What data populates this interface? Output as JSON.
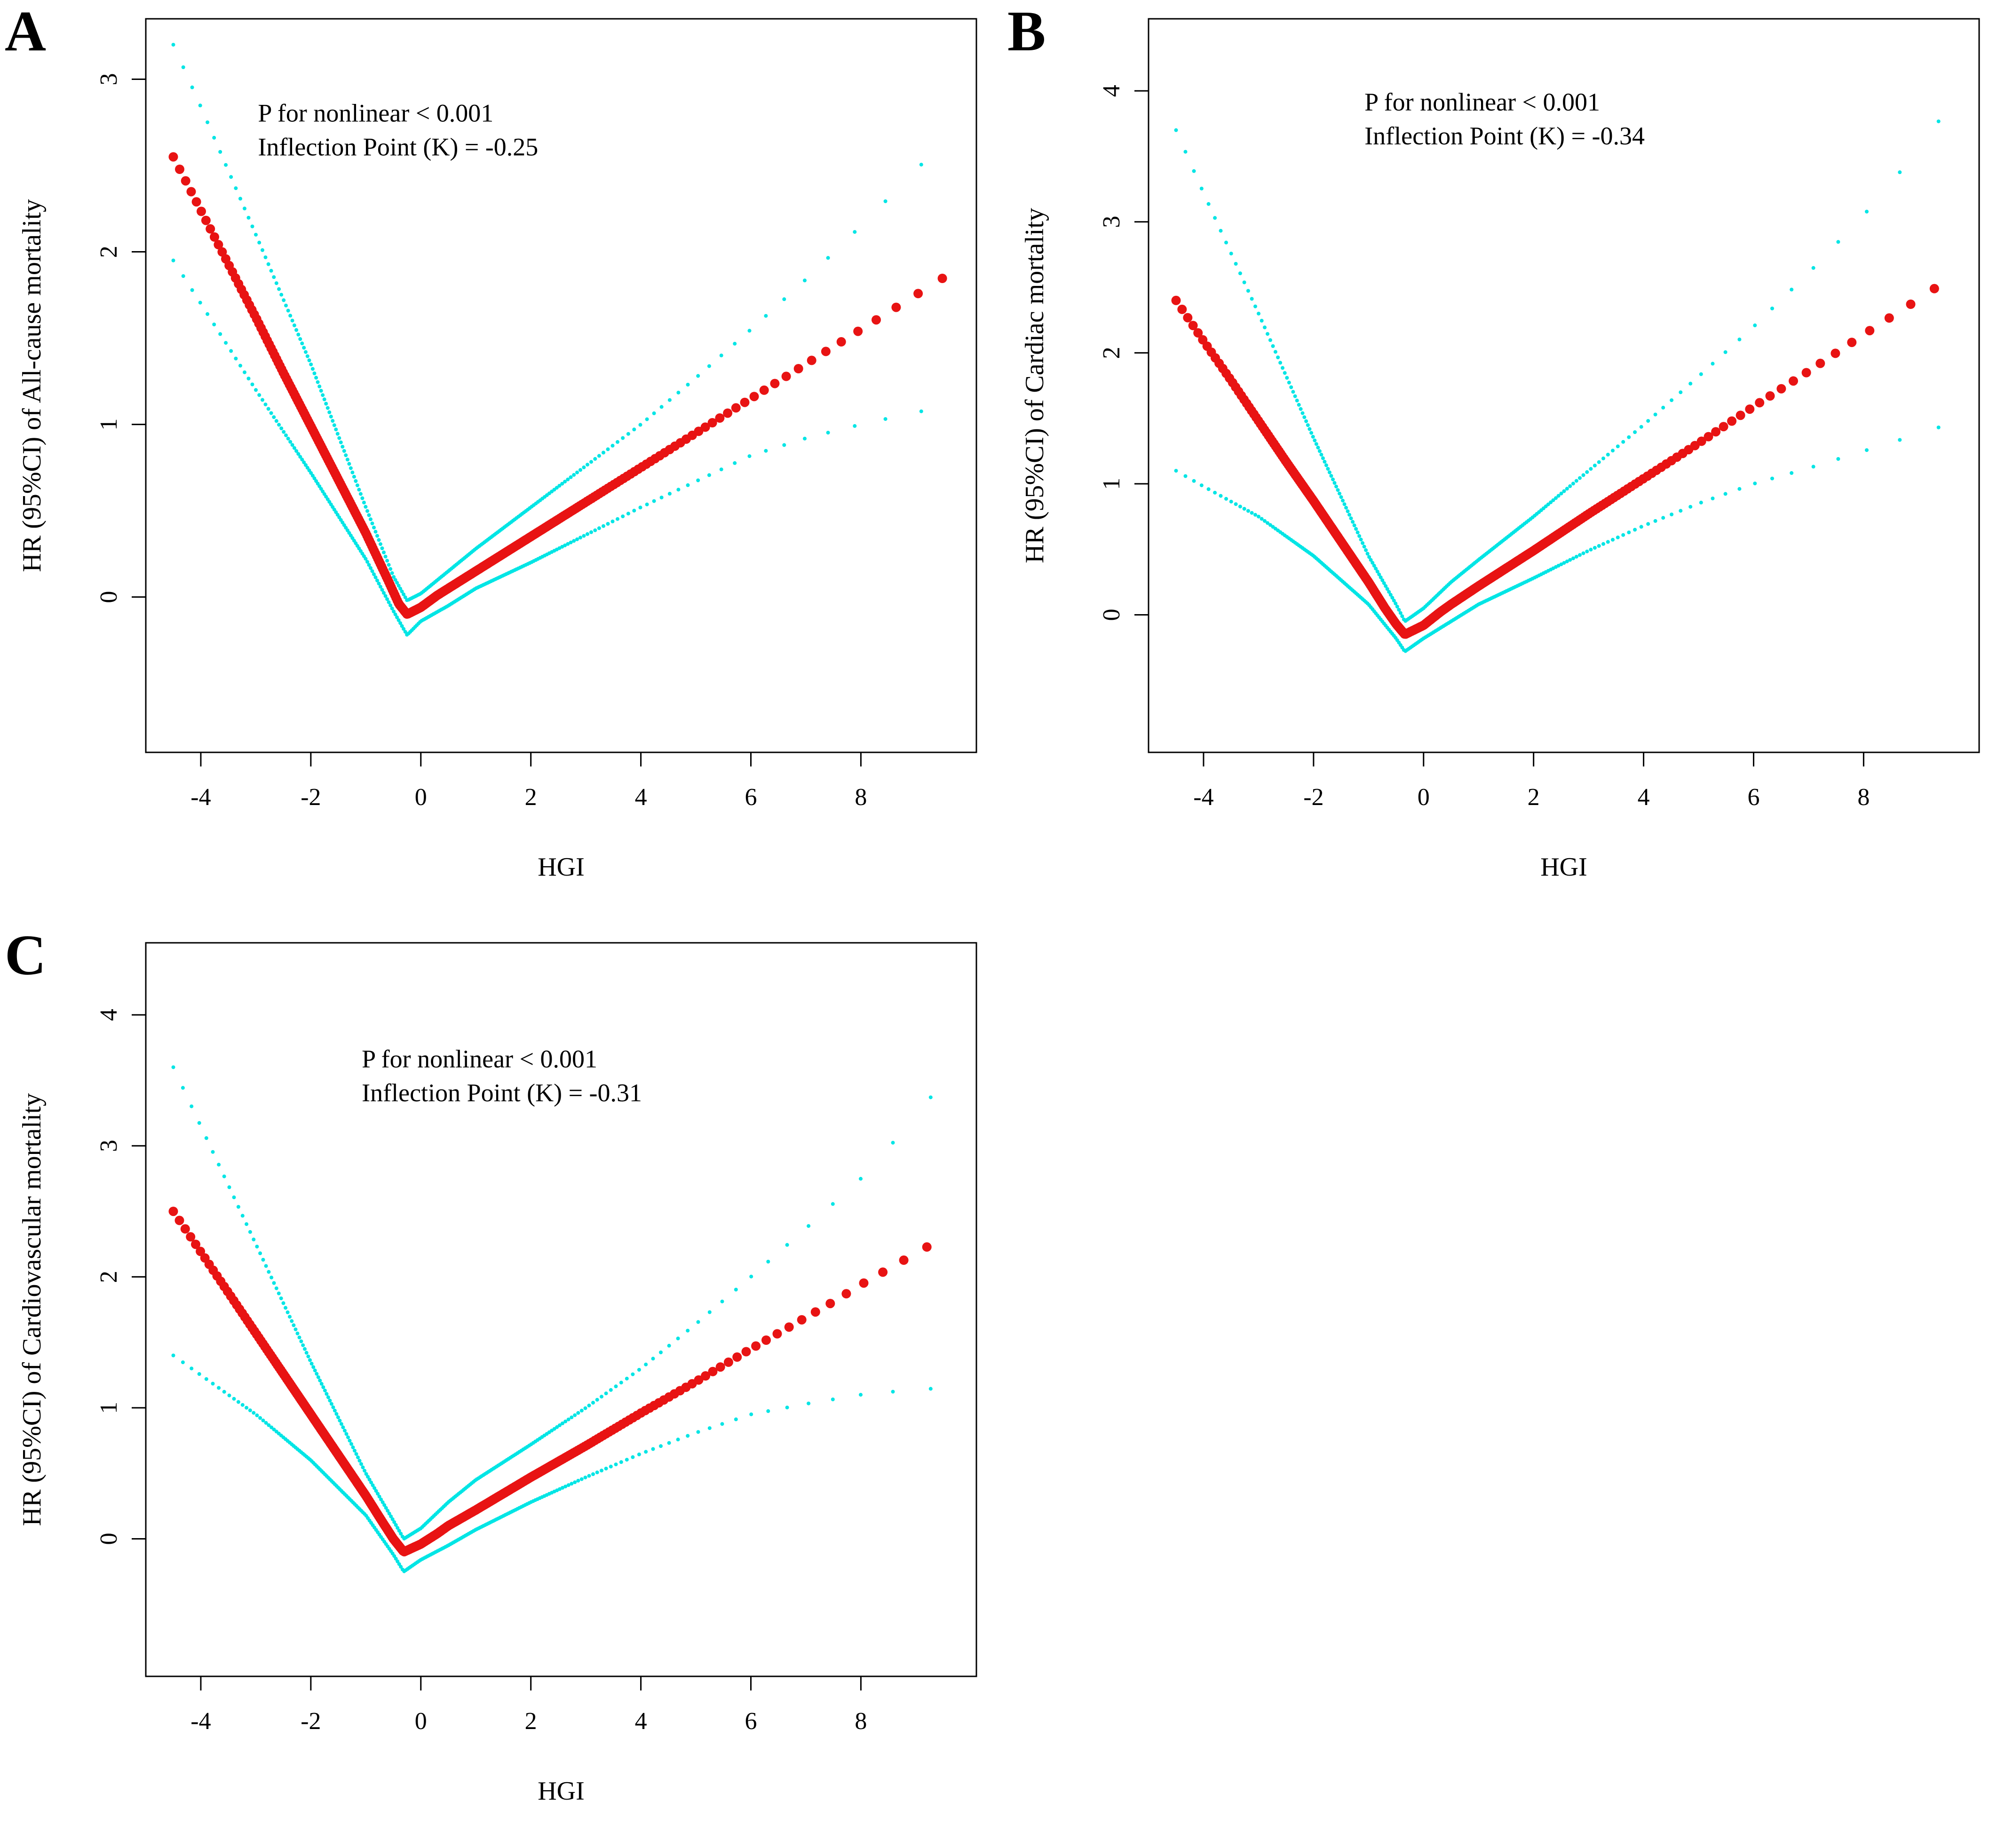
{
  "figure": {
    "panels": [
      {
        "letter": "A"
      },
      {
        "letter": "B"
      },
      {
        "letter": "C"
      }
    ]
  },
  "colors": {
    "estimate": "#e81313",
    "ci": "#00e5e5",
    "axis": "#000000",
    "background": "#ffffff"
  },
  "chart_data": [
    {
      "type": "scatter",
      "panel": "A",
      "title": "",
      "xlabel": "HGI",
      "ylabel": "HR (95%CI) of All-cause mortality",
      "annotation_lines": [
        "P for nonlinear < 0.001",
        "Inflection Point (K) = -0.25"
      ],
      "p_for_nonlinear": "< 0.001",
      "inflection_k": -0.25,
      "xlim": [
        -5.0,
        10.1
      ],
      "ylim": [
        -0.9,
        3.35
      ],
      "xticks": [
        -4,
        -2,
        0,
        2,
        4,
        6,
        8
      ],
      "yticks": [
        0,
        1,
        2,
        3
      ],
      "grid": false,
      "legend": "none",
      "annotation_pos": {
        "x_frac": 0.135,
        "y_frac": 0.14
      },
      "series": [
        {
          "name": "HR estimate",
          "role": "estimate",
          "color": "#e81313",
          "points": [
            [
              -4.5,
              2.55
            ],
            [
              -4.0,
              2.24
            ],
            [
              -3.5,
              1.93
            ],
            [
              -3.0,
              1.62
            ],
            [
              -2.5,
              1.3
            ],
            [
              -2.0,
              0.99
            ],
            [
              -1.5,
              0.68
            ],
            [
              -1.0,
              0.37
            ],
            [
              -0.6,
              0.1
            ],
            [
              -0.4,
              -0.04
            ],
            [
              -0.25,
              -0.1
            ],
            [
              0.0,
              -0.06
            ],
            [
              0.3,
              0.01
            ],
            [
              0.5,
              0.05
            ],
            [
              1.0,
              0.15
            ],
            [
              2.0,
              0.35
            ],
            [
              3.0,
              0.55
            ],
            [
              4.0,
              0.75
            ],
            [
              5.0,
              0.95
            ],
            [
              6.0,
              1.15
            ],
            [
              7.0,
              1.35
            ],
            [
              7.5,
              1.45
            ],
            [
              8.0,
              1.55
            ],
            [
              9.0,
              1.75
            ],
            [
              9.5,
              1.85
            ]
          ]
        },
        {
          "name": "95% CI upper",
          "role": "ci",
          "color": "#00e5e5",
          "points": [
            [
              -4.5,
              3.2
            ],
            [
              -4.0,
              2.84
            ],
            [
              -3.0,
              2.1
            ],
            [
              -2.0,
              1.35
            ],
            [
              -1.0,
              0.52
            ],
            [
              -0.5,
              0.12
            ],
            [
              -0.25,
              -0.02
            ],
            [
              0.0,
              0.02
            ],
            [
              0.5,
              0.15
            ],
            [
              1.0,
              0.28
            ],
            [
              2.0,
              0.52
            ],
            [
              3.0,
              0.76
            ],
            [
              4.0,
              1.0
            ],
            [
              5.0,
              1.27
            ],
            [
              6.0,
              1.55
            ],
            [
              7.0,
              1.84
            ],
            [
              8.0,
              2.15
            ],
            [
              9.0,
              2.47
            ],
            [
              9.5,
              2.65
            ]
          ]
        },
        {
          "name": "95% CI lower",
          "role": "ci",
          "color": "#00e5e5",
          "points": [
            [
              -4.5,
              1.95
            ],
            [
              -4.0,
              1.7
            ],
            [
              -3.0,
              1.2
            ],
            [
              -2.0,
              0.72
            ],
            [
              -1.0,
              0.22
            ],
            [
              -0.5,
              -0.08
            ],
            [
              -0.25,
              -0.22
            ],
            [
              0.0,
              -0.14
            ],
            [
              0.5,
              -0.05
            ],
            [
              1.0,
              0.05
            ],
            [
              2.0,
              0.2
            ],
            [
              3.0,
              0.36
            ],
            [
              4.0,
              0.52
            ],
            [
              5.0,
              0.67
            ],
            [
              6.0,
              0.82
            ],
            [
              7.0,
              0.92
            ],
            [
              8.0,
              1.0
            ],
            [
              9.0,
              1.07
            ],
            [
              9.5,
              1.1
            ]
          ]
        }
      ]
    },
    {
      "type": "scatter",
      "panel": "B",
      "title": "",
      "xlabel": "HGI",
      "ylabel": "HR (95%CI) of Cardiac mortality",
      "annotation_lines": [
        "P for nonlinear < 0.001",
        "Inflection Point (K) = -0.34"
      ],
      "p_for_nonlinear": "< 0.001",
      "inflection_k": -0.34,
      "xlim": [
        -5.0,
        10.1
      ],
      "ylim": [
        -1.05,
        4.55
      ],
      "xticks": [
        -4,
        -2,
        0,
        2,
        4,
        6,
        8
      ],
      "yticks": [
        0,
        1,
        2,
        3,
        4
      ],
      "grid": false,
      "legend": "none",
      "annotation_pos": {
        "x_frac": 0.26,
        "y_frac": 0.125
      },
      "series": [
        {
          "name": "HR estimate",
          "role": "estimate",
          "color": "#e81313",
          "points": [
            [
              -4.5,
              2.4
            ],
            [
              -4.0,
              2.09
            ],
            [
              -3.5,
              1.79
            ],
            [
              -3.0,
              1.48
            ],
            [
              -2.5,
              1.17
            ],
            [
              -2.0,
              0.87
            ],
            [
              -1.5,
              0.56
            ],
            [
              -1.0,
              0.25
            ],
            [
              -0.7,
              0.05
            ],
            [
              -0.5,
              -0.07
            ],
            [
              -0.34,
              -0.15
            ],
            [
              0.0,
              -0.08
            ],
            [
              0.3,
              0.02
            ],
            [
              0.5,
              0.08
            ],
            [
              1.0,
              0.22
            ],
            [
              2.0,
              0.49
            ],
            [
              3.0,
              0.77
            ],
            [
              4.0,
              1.04
            ],
            [
              5.0,
              1.31
            ],
            [
              6.0,
              1.59
            ],
            [
              7.0,
              1.86
            ],
            [
              7.5,
              2.0
            ],
            [
              8.0,
              2.14
            ],
            [
              9.0,
              2.41
            ],
            [
              9.5,
              2.55
            ]
          ]
        },
        {
          "name": "95% CI upper",
          "role": "ci",
          "color": "#00e5e5",
          "points": [
            [
              -4.5,
              3.7
            ],
            [
              -4.0,
              3.22
            ],
            [
              -3.0,
              2.3
            ],
            [
              -2.0,
              1.35
            ],
            [
              -1.0,
              0.45
            ],
            [
              -0.5,
              0.08
            ],
            [
              -0.34,
              -0.05
            ],
            [
              0.0,
              0.05
            ],
            [
              0.5,
              0.25
            ],
            [
              1.0,
              0.42
            ],
            [
              2.0,
              0.75
            ],
            [
              3.0,
              1.1
            ],
            [
              4.0,
              1.45
            ],
            [
              5.0,
              1.82
            ],
            [
              6.0,
              2.2
            ],
            [
              7.0,
              2.61
            ],
            [
              8.0,
              3.05
            ],
            [
              9.0,
              3.55
            ],
            [
              9.5,
              3.85
            ]
          ]
        },
        {
          "name": "95% CI lower",
          "role": "ci",
          "color": "#00e5e5",
          "points": [
            [
              -4.5,
              1.1
            ],
            [
              -4.0,
              0.98
            ],
            [
              -3.0,
              0.75
            ],
            [
              -2.0,
              0.45
            ],
            [
              -1.0,
              0.08
            ],
            [
              -0.5,
              -0.18
            ],
            [
              -0.34,
              -0.28
            ],
            [
              0.0,
              -0.18
            ],
            [
              0.5,
              -0.05
            ],
            [
              1.0,
              0.08
            ],
            [
              2.0,
              0.28
            ],
            [
              3.0,
              0.49
            ],
            [
              4.0,
              0.68
            ],
            [
              5.0,
              0.85
            ],
            [
              6.0,
              1.0
            ],
            [
              7.0,
              1.12
            ],
            [
              8.0,
              1.25
            ],
            [
              9.0,
              1.38
            ],
            [
              9.5,
              1.45
            ]
          ]
        }
      ]
    },
    {
      "type": "scatter",
      "panel": "C",
      "title": "",
      "xlabel": "HGI",
      "ylabel": "HR (95%CI) of Cardiovascular mortality",
      "annotation_lines": [
        "P for nonlinear < 0.001",
        "Inflection Point (K) = -0.31"
      ],
      "p_for_nonlinear": "< 0.001",
      "inflection_k": -0.31,
      "xlim": [
        -5.0,
        10.1
      ],
      "ylim": [
        -1.05,
        4.55
      ],
      "xticks": [
        -4,
        -2,
        0,
        2,
        4,
        6,
        8
      ],
      "yticks": [
        0,
        1,
        2,
        3,
        4
      ],
      "grid": false,
      "legend": "none",
      "annotation_pos": {
        "x_frac": 0.26,
        "y_frac": 0.17
      },
      "series": [
        {
          "name": "HR estimate",
          "role": "estimate",
          "color": "#e81313",
          "points": [
            [
              -4.5,
              2.5
            ],
            [
              -4.0,
              2.19
            ],
            [
              -3.5,
              1.88
            ],
            [
              -3.0,
              1.57
            ],
            [
              -2.5,
              1.26
            ],
            [
              -2.0,
              0.95
            ],
            [
              -1.5,
              0.64
            ],
            [
              -1.0,
              0.33
            ],
            [
              -0.7,
              0.13
            ],
            [
              -0.5,
              0.0
            ],
            [
              -0.31,
              -0.1
            ],
            [
              0.0,
              -0.04
            ],
            [
              0.3,
              0.04
            ],
            [
              0.5,
              0.1
            ],
            [
              1.0,
              0.22
            ],
            [
              2.0,
              0.47
            ],
            [
              3.0,
              0.71
            ],
            [
              4.0,
              0.96
            ],
            [
              5.0,
              1.2
            ],
            [
              6.0,
              1.45
            ],
            [
              7.0,
              1.69
            ],
            [
              7.5,
              1.81
            ],
            [
              8.0,
              1.94
            ],
            [
              9.0,
              2.18
            ],
            [
              9.5,
              2.3
            ]
          ]
        },
        {
          "name": "95% CI upper",
          "role": "ci",
          "color": "#00e5e5",
          "points": [
            [
              -4.5,
              3.6
            ],
            [
              -4.0,
              3.15
            ],
            [
              -3.0,
              2.25
            ],
            [
              -2.0,
              1.35
            ],
            [
              -1.0,
              0.5
            ],
            [
              -0.5,
              0.14
            ],
            [
              -0.31,
              0.0
            ],
            [
              0.0,
              0.08
            ],
            [
              0.5,
              0.28
            ],
            [
              1.0,
              0.45
            ],
            [
              2.0,
              0.72
            ],
            [
              3.0,
              1.0
            ],
            [
              4.0,
              1.3
            ],
            [
              5.0,
              1.64
            ],
            [
              6.0,
              2.0
            ],
            [
              7.0,
              2.37
            ],
            [
              8.0,
              2.75
            ],
            [
              9.0,
              3.22
            ],
            [
              9.5,
              3.5
            ]
          ]
        },
        {
          "name": "95% CI lower",
          "role": "ci",
          "color": "#00e5e5",
          "points": [
            [
              -4.5,
              1.4
            ],
            [
              -4.0,
              1.25
            ],
            [
              -3.0,
              0.95
            ],
            [
              -2.0,
              0.6
            ],
            [
              -1.0,
              0.18
            ],
            [
              -0.5,
              -0.12
            ],
            [
              -0.31,
              -0.25
            ],
            [
              0.0,
              -0.16
            ],
            [
              0.5,
              -0.05
            ],
            [
              1.0,
              0.07
            ],
            [
              2.0,
              0.28
            ],
            [
              3.0,
              0.47
            ],
            [
              4.0,
              0.65
            ],
            [
              5.0,
              0.81
            ],
            [
              6.0,
              0.95
            ],
            [
              7.0,
              1.03
            ],
            [
              8.0,
              1.1
            ],
            [
              9.0,
              1.14
            ],
            [
              9.5,
              1.15
            ]
          ]
        }
      ]
    }
  ]
}
